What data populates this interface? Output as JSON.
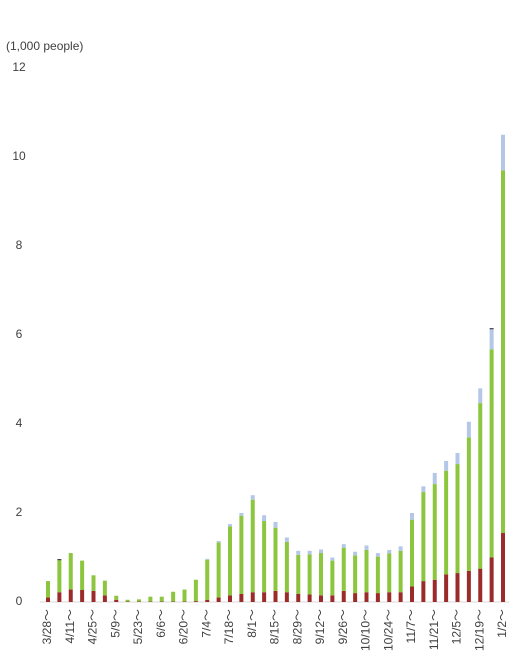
{
  "chart_data": {
    "type": "bar",
    "stacked": true,
    "y_label": "(1,000 people)",
    "categories": [
      "3/28～",
      null,
      "4/11～",
      null,
      "4/25～",
      null,
      "5/9～",
      null,
      "5/23～",
      null,
      "6/6～",
      null,
      "6/20～",
      null,
      "7/4～",
      null,
      "7/18～",
      null,
      "8/1～",
      null,
      "8/15～",
      null,
      "8/29～",
      null,
      "9/12～",
      null,
      "9/26～",
      null,
      "10/10～",
      null,
      "10/24～",
      null,
      "11/7～",
      null,
      "11/21～",
      null,
      "12/5～",
      null,
      "12/19～",
      null,
      "1/2～"
    ],
    "series": [
      {
        "color": "#9b2b2b",
        "values": [
          0.1,
          0.22,
          0.28,
          0.27,
          0.25,
          0.15,
          0.05,
          0.01,
          0.01,
          0.01,
          0.01,
          0.01,
          0.01,
          0.02,
          0.05,
          0.1,
          0.15,
          0.18,
          0.22,
          0.22,
          0.25,
          0.22,
          0.18,
          0.17,
          0.15,
          0.15,
          0.25,
          0.2,
          0.22,
          0.2,
          0.22,
          0.22,
          0.35,
          0.47,
          0.5,
          0.62,
          0.65,
          0.7,
          0.75,
          1.0,
          1.55
        ]
      },
      {
        "color": "#8cc63f",
        "values": [
          0.37,
          0.72,
          0.82,
          0.66,
          0.35,
          0.33,
          0.09,
          0.04,
          0.05,
          0.11,
          0.11,
          0.22,
          0.27,
          0.48,
          0.9,
          1.24,
          1.55,
          1.76,
          2.08,
          1.6,
          1.42,
          1.13,
          0.88,
          0.9,
          0.95,
          0.78,
          0.97,
          0.85,
          0.95,
          0.82,
          0.87,
          0.93,
          1.5,
          2.0,
          2.15,
          2.33,
          2.45,
          3.0,
          3.72,
          4.68,
          8.15
        ]
      },
      {
        "color": "#b4c7e7",
        "values": [
          0,
          0,
          0,
          0,
          0,
          0,
          0,
          0,
          0,
          0,
          0,
          0,
          0,
          0,
          0.02,
          0.03,
          0.05,
          0.06,
          0.1,
          0.13,
          0.13,
          0.1,
          0.09,
          0.08,
          0.08,
          0.07,
          0.08,
          0.08,
          0.1,
          0.08,
          0.08,
          0.1,
          0.15,
          0.13,
          0.25,
          0.22,
          0.25,
          0.35,
          0.33,
          0.45,
          0.8
        ]
      },
      {
        "color": "#000000",
        "values": [
          0,
          0.02,
          0,
          0,
          0,
          0,
          0,
          0,
          0,
          0,
          0,
          0,
          0,
          0,
          0,
          0,
          0,
          0,
          0,
          0,
          0,
          0,
          0,
          0,
          0,
          0,
          0,
          0,
          0,
          0,
          0,
          0,
          0,
          0,
          0,
          0,
          0,
          0,
          0,
          0.02,
          0
        ]
      }
    ],
    "ylim": [
      0,
      12
    ],
    "yticks": [
      0,
      2,
      4,
      6,
      8,
      10,
      12
    ]
  }
}
